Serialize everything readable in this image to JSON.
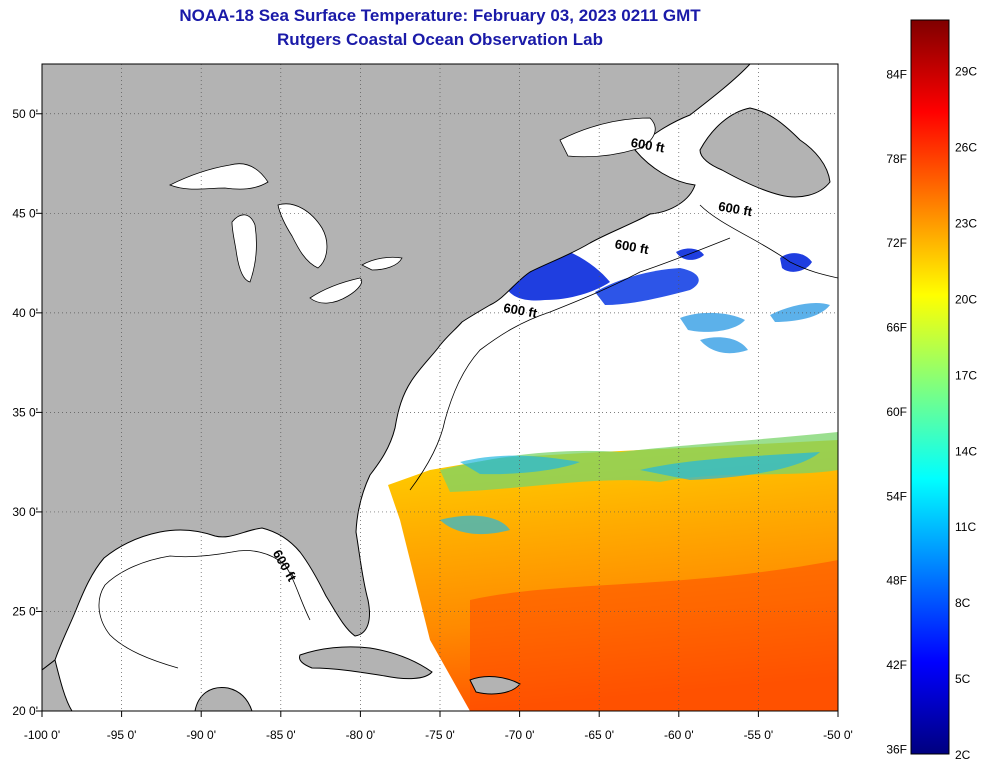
{
  "title": {
    "line1": "NOAA-18 Sea Surface Temperature:  February 03, 2023 0211 GMT",
    "line2": "Rutgers Coastal Ocean Observation Lab"
  },
  "map": {
    "lon_range": [
      -100,
      -50
    ],
    "lat_range": [
      20,
      52.5
    ],
    "lon_ticks": [
      {
        "v": -100,
        "label": "-100 0'"
      },
      {
        "v": -95,
        "label": "-95 0'"
      },
      {
        "v": -90,
        "label": "-90 0'"
      },
      {
        "v": -85,
        "label": "-85 0'"
      },
      {
        "v": -80,
        "label": "-80 0'"
      },
      {
        "v": -75,
        "label": "-75 0'"
      },
      {
        "v": -70,
        "label": "-70 0'"
      },
      {
        "v": -65,
        "label": "-65 0'"
      },
      {
        "v": -60,
        "label": "-60 0'"
      },
      {
        "v": -55,
        "label": "-55 0'"
      },
      {
        "v": -50,
        "label": "-50 0'"
      }
    ],
    "lat_ticks": [
      {
        "v": 20,
        "label": "20 0'"
      },
      {
        "v": 25,
        "label": "25 0'"
      },
      {
        "v": 30,
        "label": "30 0'"
      },
      {
        "v": 35,
        "label": "35 0'"
      },
      {
        "v": 40,
        "label": "40 0'"
      },
      {
        "v": 45,
        "label": "45 0'"
      },
      {
        "v": 50,
        "label": "50 0'"
      }
    ],
    "isobath_labels": [
      {
        "text": "600 ft",
        "lon": -62.0,
        "lat": 48.2
      },
      {
        "text": "600 ft",
        "lon": -56.5,
        "lat": 45.0
      },
      {
        "text": "600 ft",
        "lon": -63.0,
        "lat": 43.1
      },
      {
        "text": "600 ft",
        "lon": -70.0,
        "lat": 39.9
      },
      {
        "text": "600 ft",
        "lon": -85.0,
        "lat": 27.2
      }
    ],
    "colors": {
      "land": "#b3b3b3",
      "cloud": "#ffffff",
      "coast": "#000000"
    }
  },
  "colorbar": {
    "fahrenheit": [
      {
        "v": 36,
        "label": "36F"
      },
      {
        "v": 42,
        "label": "42F"
      },
      {
        "v": 48,
        "label": "48F"
      },
      {
        "v": 54,
        "label": "54F"
      },
      {
        "v": 60,
        "label": "60F"
      },
      {
        "v": 66,
        "label": "66F"
      },
      {
        "v": 72,
        "label": "72F"
      },
      {
        "v": 78,
        "label": "78F"
      },
      {
        "v": 84,
        "label": "84F"
      }
    ],
    "celsius": [
      {
        "v": 2,
        "label": "2C"
      },
      {
        "v": 5,
        "label": "5C"
      },
      {
        "v": 8,
        "label": "8C"
      },
      {
        "v": 11,
        "label": "11C"
      },
      {
        "v": 14,
        "label": "14C"
      },
      {
        "v": 17,
        "label": "17C"
      },
      {
        "v": 20,
        "label": "20C"
      },
      {
        "v": 23,
        "label": "23C"
      },
      {
        "v": 26,
        "label": "26C"
      },
      {
        "v": 29,
        "label": "29C"
      }
    ],
    "range_c": [
      2,
      31
    ],
    "stops": [
      "#00007f",
      "#0000ff",
      "#007fff",
      "#00ffff",
      "#7fff7f",
      "#ffff00",
      "#ff7f00",
      "#ff0000",
      "#7f0000"
    ]
  }
}
